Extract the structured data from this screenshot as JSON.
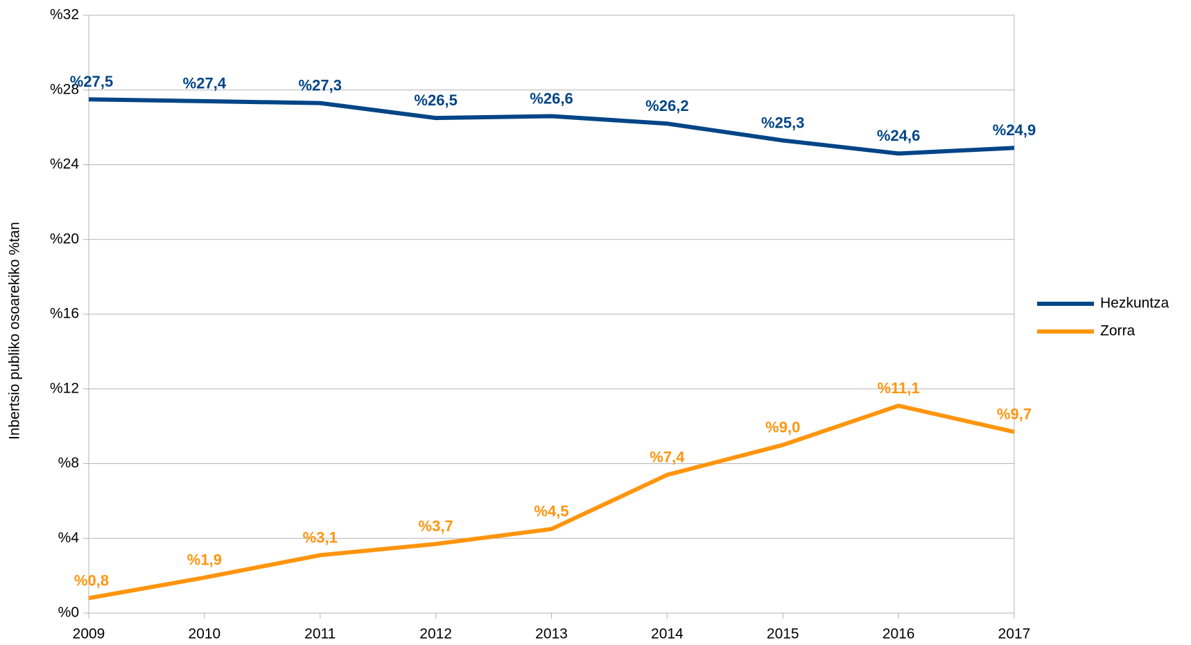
{
  "chart_data": {
    "type": "line",
    "y_label": "Inbertsio publiko osoarekiko %tan",
    "x": [
      2009,
      2010,
      2011,
      2012,
      2013,
      2014,
      2015,
      2016,
      2017
    ],
    "xlim": [
      2009,
      2017
    ],
    "xticks": [
      2009,
      2010,
      2011,
      2012,
      2013,
      2014,
      2015,
      2016,
      2017
    ],
    "ylim": [
      0,
      32
    ],
    "yticks": [
      {
        "value": 0,
        "label": "%0"
      },
      {
        "value": 4,
        "label": "%4"
      },
      {
        "value": 8,
        "label": "%8"
      },
      {
        "value": 12,
        "label": "%12"
      },
      {
        "value": 16,
        "label": "%16"
      },
      {
        "value": 20,
        "label": "%20"
      },
      {
        "value": 24,
        "label": "%24"
      },
      {
        "value": 28,
        "label": "%28"
      },
      {
        "value": 32,
        "label": "%32"
      }
    ],
    "grid": true,
    "legend": "right",
    "series": [
      {
        "name": "Hezkuntza",
        "color": "#004586",
        "values": [
          27.5,
          27.4,
          27.3,
          26.5,
          26.6,
          26.2,
          25.3,
          24.6,
          24.9
        ],
        "value_labels": [
          "%27,5",
          "%27,4",
          "%27,3",
          "%26,5",
          "%26,6",
          "%26,2",
          "%25,3",
          "%24,6",
          "%24,9"
        ]
      },
      {
        "name": "Zorra",
        "color": "#ff950e",
        "values": [
          0.8,
          1.9,
          3.1,
          3.7,
          4.5,
          7.4,
          9.0,
          11.1,
          9.7
        ],
        "value_labels": [
          "%0,8",
          "%1,9",
          "%3,1",
          "%3,7",
          "%4,5",
          "%7,4",
          "%9,0",
          "%11,1",
          "%9,7"
        ]
      }
    ]
  }
}
